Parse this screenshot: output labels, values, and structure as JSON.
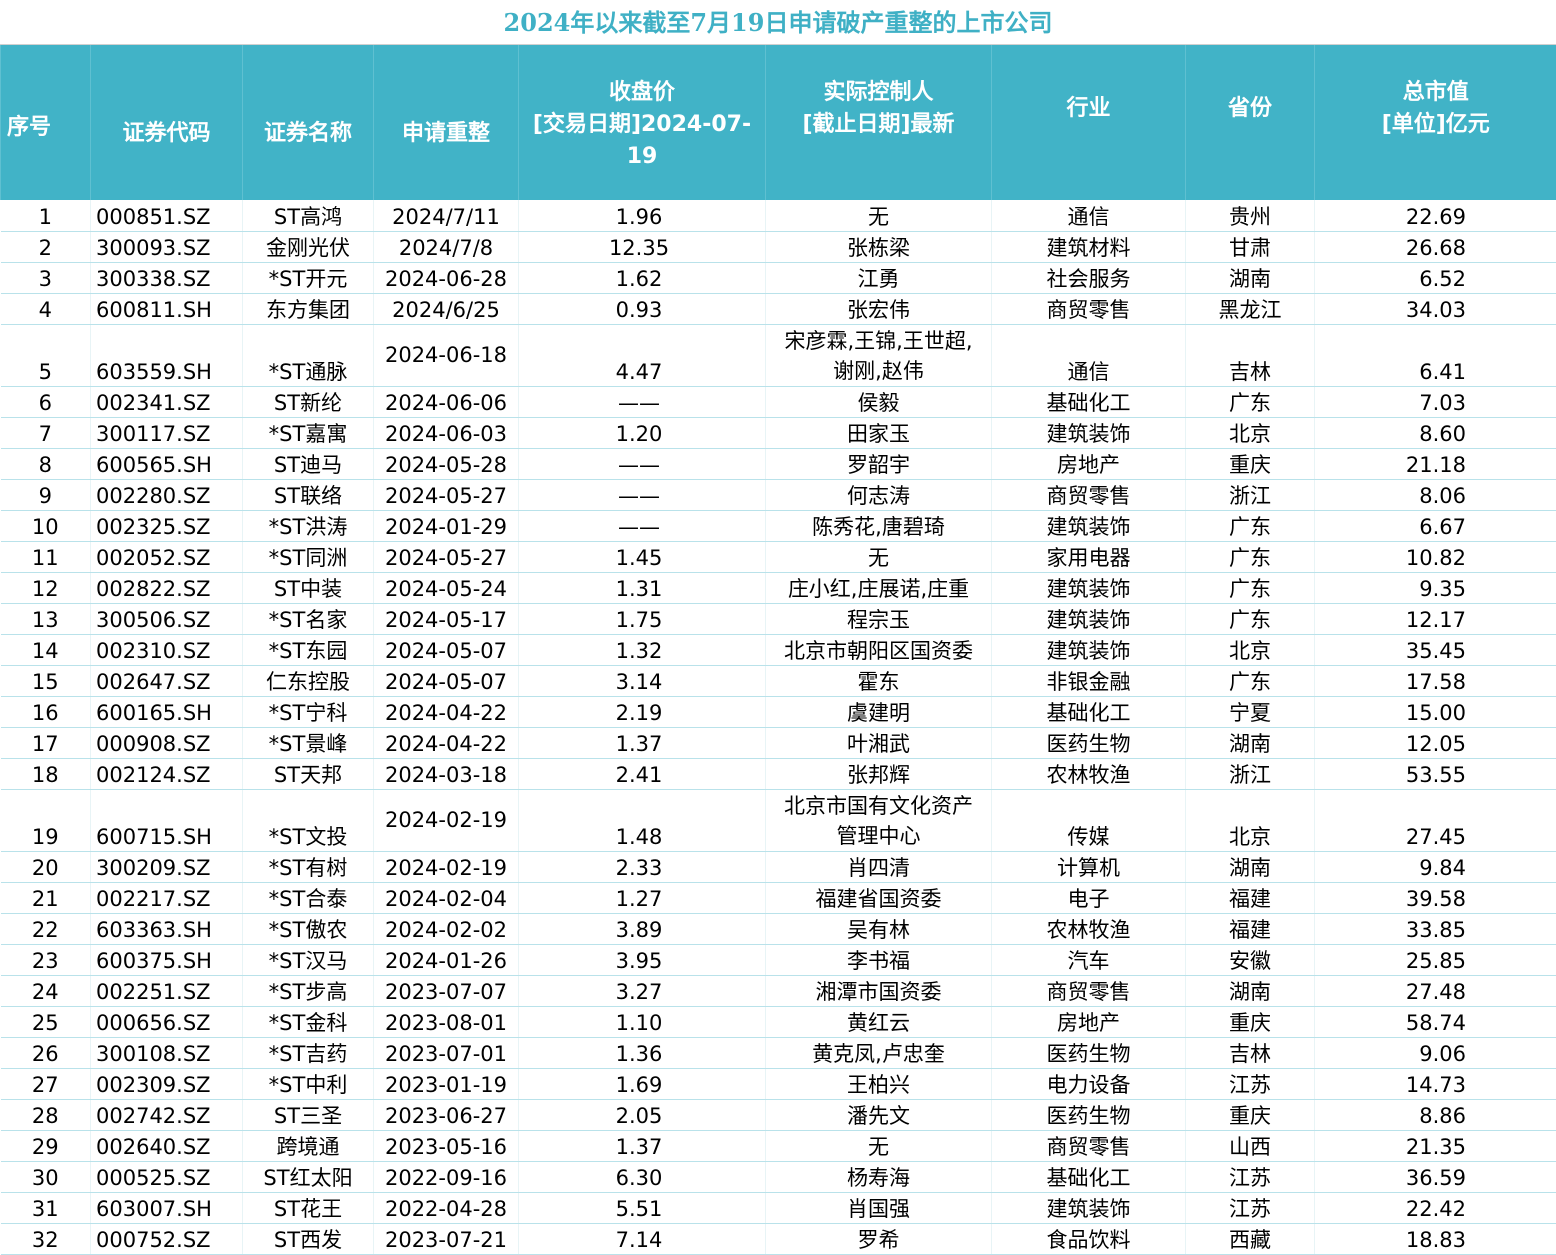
{
  "title": "2024年以来截至7月19日申请破产重整的上市公司",
  "headers": [
    "序号",
    "证券代码",
    "证券名称",
    "申请重整",
    "收盘价\n[交易日期]2024-07-19",
    "实际控制人\n[截止日期]最新",
    "行业",
    "省份",
    "总市值\n[单位]亿元"
  ],
  "rows": [
    [
      "1",
      "000851.SZ",
      "ST高鸿",
      "2024/7/11",
      "1.96",
      "无",
      "通信",
      "贵州",
      "22.69"
    ],
    [
      "2",
      "300093.SZ",
      "金刚光伏",
      "2024/7/8",
      "12.35",
      "张栋梁",
      "建筑材料",
      "甘肃",
      "26.68"
    ],
    [
      "3",
      "300338.SZ",
      "*ST开元",
      "2024-06-28",
      "1.62",
      "江勇",
      "社会服务",
      "湖南",
      "6.52"
    ],
    [
      "4",
      "600811.SH",
      "东方集团",
      "2024/6/25",
      "0.93",
      "张宏伟",
      "商贸零售",
      "黑龙江",
      "34.03"
    ],
    [
      "5",
      "603559.SH",
      "*ST通脉",
      "2024-06-18",
      "4.47",
      "宋彦霖,王锦,王世超,\n谢刚,赵伟",
      "通信",
      "吉林",
      "6.41"
    ],
    [
      "6",
      "002341.SZ",
      "ST新纶",
      "2024-06-06",
      "——",
      "侯毅",
      "基础化工",
      "广东",
      "7.03"
    ],
    [
      "7",
      "300117.SZ",
      "*ST嘉寓",
      "2024-06-03",
      "1.20",
      "田家玉",
      "建筑装饰",
      "北京",
      "8.60"
    ],
    [
      "8",
      "600565.SH",
      "ST迪马",
      "2024-05-28",
      "——",
      "罗韶宇",
      "房地产",
      "重庆",
      "21.18"
    ],
    [
      "9",
      "002280.SZ",
      "ST联络",
      "2024-05-27",
      "——",
      "何志涛",
      "商贸零售",
      "浙江",
      "8.06"
    ],
    [
      "10",
      "002325.SZ",
      "*ST洪涛",
      "2024-01-29",
      "——",
      "陈秀花,唐碧琦",
      "建筑装饰",
      "广东",
      "6.67"
    ],
    [
      "11",
      "002052.SZ",
      "*ST同洲",
      "2024-05-27",
      "1.45",
      "无",
      "家用电器",
      "广东",
      "10.82"
    ],
    [
      "12",
      "002822.SZ",
      "ST中装",
      "2024-05-24",
      "1.31",
      "庄小红,庄展诺,庄重",
      "建筑装饰",
      "广东",
      "9.35"
    ],
    [
      "13",
      "300506.SZ",
      "*ST名家",
      "2024-05-17",
      "1.75",
      "程宗玉",
      "建筑装饰",
      "广东",
      "12.17"
    ],
    [
      "14",
      "002310.SZ",
      "*ST东园",
      "2024-05-07",
      "1.32",
      "北京市朝阳区国资委",
      "建筑装饰",
      "北京",
      "35.45"
    ],
    [
      "15",
      "002647.SZ",
      "仁东控股",
      "2024-05-07",
      "3.14",
      "霍东",
      "非银金融",
      "广东",
      "17.58"
    ],
    [
      "16",
      "600165.SH",
      "*ST宁科",
      "2024-04-22",
      "2.19",
      "虞建明",
      "基础化工",
      "宁夏",
      "15.00"
    ],
    [
      "17",
      "000908.SZ",
      "*ST景峰",
      "2024-04-22",
      "1.37",
      "叶湘武",
      "医药生物",
      "湖南",
      "12.05"
    ],
    [
      "18",
      "002124.SZ",
      "ST天邦",
      "2024-03-18",
      "2.41",
      "张邦辉",
      "农林牧渔",
      "浙江",
      "53.55"
    ],
    [
      "19",
      "600715.SH",
      "*ST文投",
      "2024-02-19",
      "1.48",
      "北京市国有文化资产\n管理中心",
      "传媒",
      "北京",
      "27.45"
    ],
    [
      "20",
      "300209.SZ",
      "*ST有树",
      "2024-02-19",
      "2.33",
      "肖四清",
      "计算机",
      "湖南",
      "9.84"
    ],
    [
      "21",
      "002217.SZ",
      "*ST合泰",
      "2024-02-04",
      "1.27",
      "福建省国资委",
      "电子",
      "福建",
      "39.58"
    ],
    [
      "22",
      "603363.SH",
      "*ST傲农",
      "2024-02-02",
      "3.89",
      "吴有林",
      "农林牧渔",
      "福建",
      "33.85"
    ],
    [
      "23",
      "600375.SH",
      "*ST汉马",
      "2024-01-26",
      "3.95",
      "李书福",
      "汽车",
      "安徽",
      "25.85"
    ],
    [
      "24",
      "002251.SZ",
      "*ST步高",
      "2023-07-07",
      "3.27",
      "湘潭市国资委",
      "商贸零售",
      "湖南",
      "27.48"
    ],
    [
      "25",
      "000656.SZ",
      "*ST金科",
      "2023-08-01",
      "1.10",
      "黄红云",
      "房地产",
      "重庆",
      "58.74"
    ],
    [
      "26",
      "300108.SZ",
      "*ST吉药",
      "2023-07-01",
      "1.36",
      "黄克凤,卢忠奎",
      "医药生物",
      "吉林",
      "9.06"
    ],
    [
      "27",
      "002309.SZ",
      "*ST中利",
      "2023-01-19",
      "1.69",
      "王柏兴",
      "电力设备",
      "江苏",
      "14.73"
    ],
    [
      "28",
      "002742.SZ",
      "ST三圣",
      "2023-06-27",
      "2.05",
      "潘先文",
      "医药生物",
      "重庆",
      "8.86"
    ],
    [
      "29",
      "002640.SZ",
      "跨境通",
      "2023-05-16",
      "1.37",
      "无",
      "商贸零售",
      "山西",
      "21.35"
    ],
    [
      "30",
      "000525.SZ",
      "ST红太阳",
      "2022-09-16",
      "6.30",
      "杨寿海",
      "基础化工",
      "江苏",
      "36.59"
    ],
    [
      "31",
      "603007.SH",
      "ST花王",
      "2022-04-28",
      "5.51",
      "肖国强",
      "建筑装饰",
      "江苏",
      "22.42"
    ],
    [
      "32",
      "000752.SZ",
      "ST西发",
      "2023-07-21",
      "7.14",
      "罗希",
      "食品饮料",
      "西藏",
      "18.83"
    ]
  ],
  "colors": {
    "header_bg": "#41b3c7",
    "title": "#3fb0c5"
  }
}
